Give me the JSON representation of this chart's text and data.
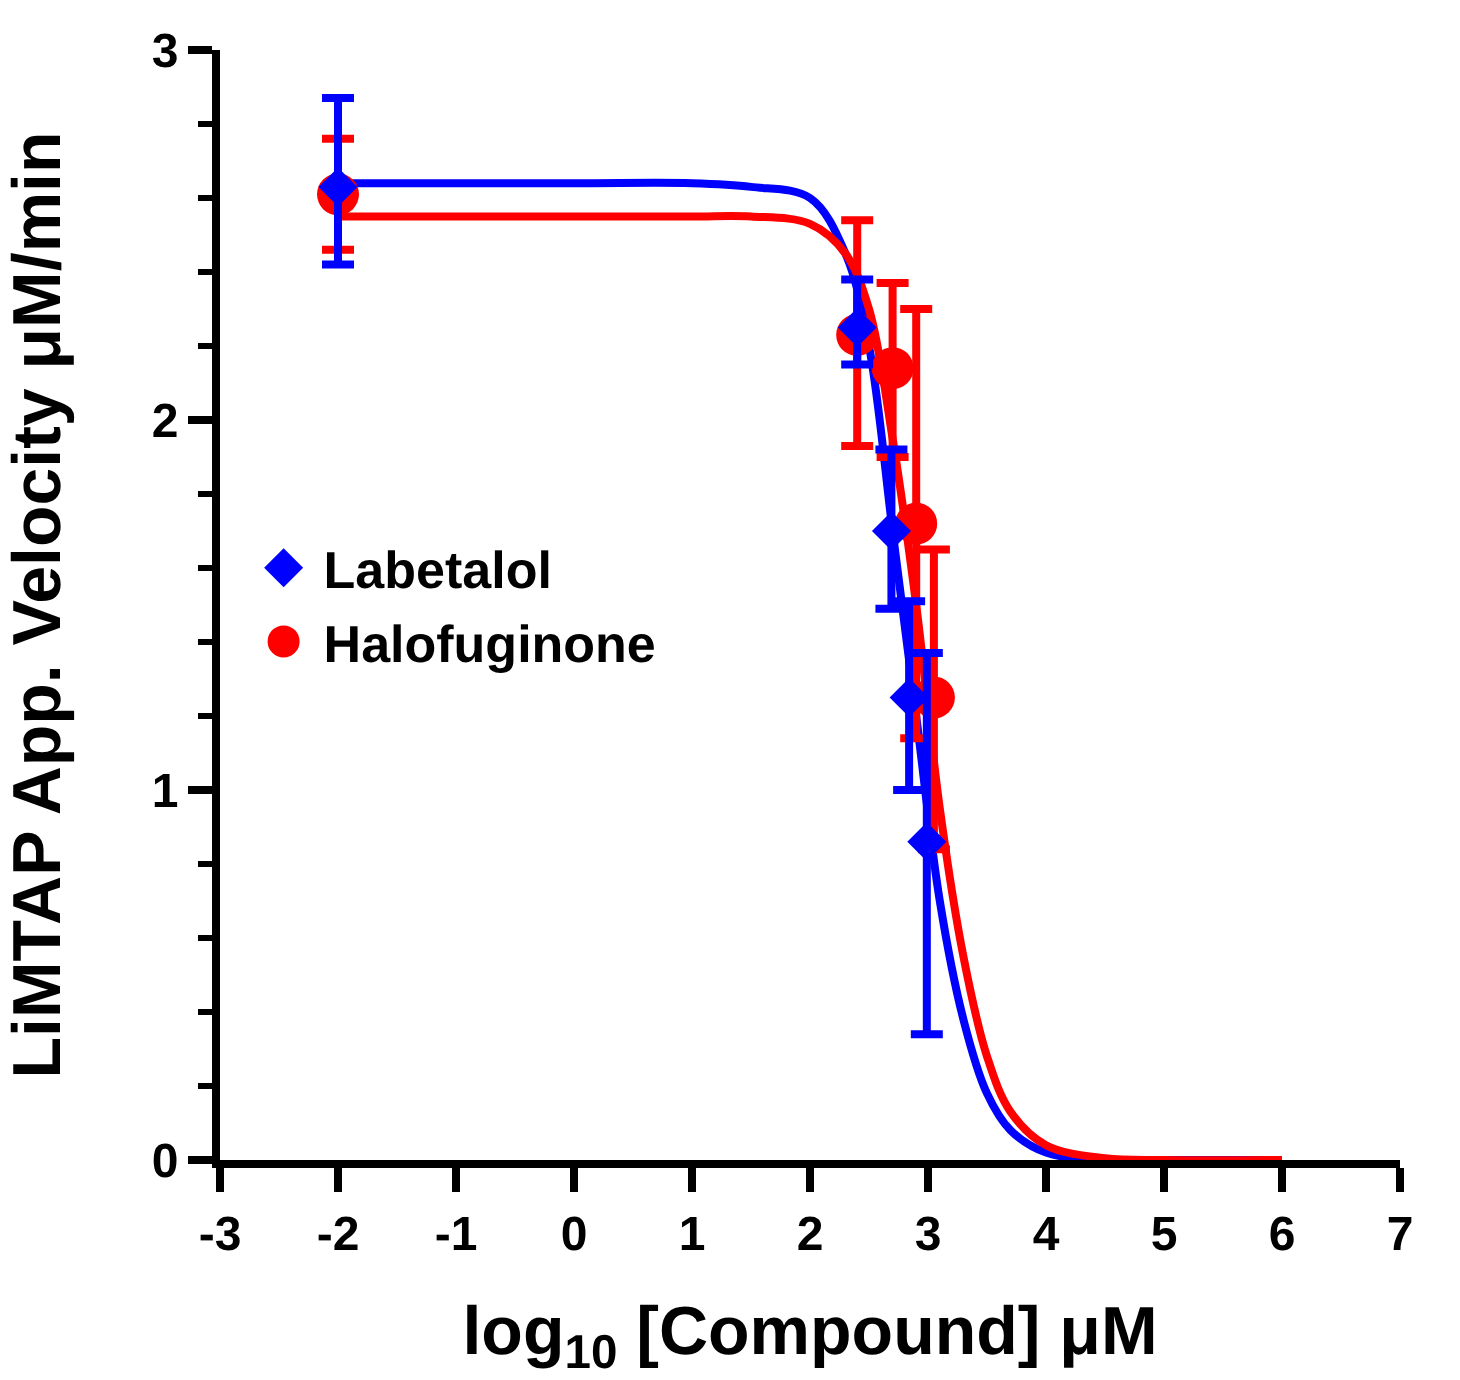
{
  "chart_data": {
    "type": "scatter",
    "xlabel": "log$_{10}$ [Compound] μM",
    "ylabel": "LiMTAP App. Velocity μM/min",
    "xlim": [
      -3,
      7
    ],
    "xticks": [
      -3,
      -2,
      -1,
      0,
      1,
      2,
      3,
      4,
      5,
      6,
      7
    ],
    "ylim": [
      0,
      3
    ],
    "yticks": [
      0,
      1,
      2,
      3
    ],
    "grid": false,
    "legend": "left",
    "series": [
      {
        "name": "Labetalol",
        "color": "#0000ff",
        "marker": "diamond",
        "x": [
          -2,
          2.4,
          2.69,
          2.84,
          2.99
        ],
        "values": [
          2.63,
          2.25,
          1.7,
          1.25,
          0.86
        ],
        "errors": [
          [
            2.42,
            2.87
          ],
          [
            2.15,
            2.38
          ],
          [
            1.49,
            1.92
          ],
          [
            1.0,
            1.51
          ],
          [
            0.34,
            1.37
          ]
        ]
      },
      {
        "name": "Halofuginone",
        "color": "#ff0000",
        "marker": "circle",
        "x": [
          -2,
          2.4,
          2.7,
          2.9,
          3.05
        ],
        "values": [
          2.61,
          2.23,
          2.14,
          1.72,
          1.25
        ],
        "errors": [
          [
            2.46,
            2.76
          ],
          [
            1.93,
            2.54
          ],
          [
            1.9,
            2.37
          ],
          [
            1.14,
            2.3
          ],
          [
            0.84,
            1.65
          ]
        ]
      },
      {
        "color": "#0000ff",
        "type": "line",
        "marker": "none",
        "x": [
          -2,
          0,
          1,
          1.5,
          2,
          2.3,
          2.5,
          2.7,
          2.9,
          3.1,
          3.3,
          3.5,
          3.7,
          4,
          4.5,
          5,
          6
        ],
        "values": [
          2.64,
          2.64,
          2.64,
          2.63,
          2.6,
          2.45,
          2.2,
          1.7,
          1.2,
          0.7,
          0.38,
          0.18,
          0.08,
          0.02,
          0,
          0,
          0
        ]
      },
      {
        "color": "#ff0000",
        "type": "line",
        "marker": "none",
        "x": [
          -2,
          0,
          1,
          1.5,
          2,
          2.3,
          2.5,
          2.7,
          2.9,
          3.1,
          3.3,
          3.5,
          3.7,
          4,
          4.5,
          5,
          6
        ],
        "values": [
          2.55,
          2.55,
          2.55,
          2.55,
          2.53,
          2.45,
          2.3,
          1.95,
          1.5,
          0.95,
          0.55,
          0.28,
          0.13,
          0.04,
          0.005,
          0,
          0
        ]
      }
    ]
  }
}
